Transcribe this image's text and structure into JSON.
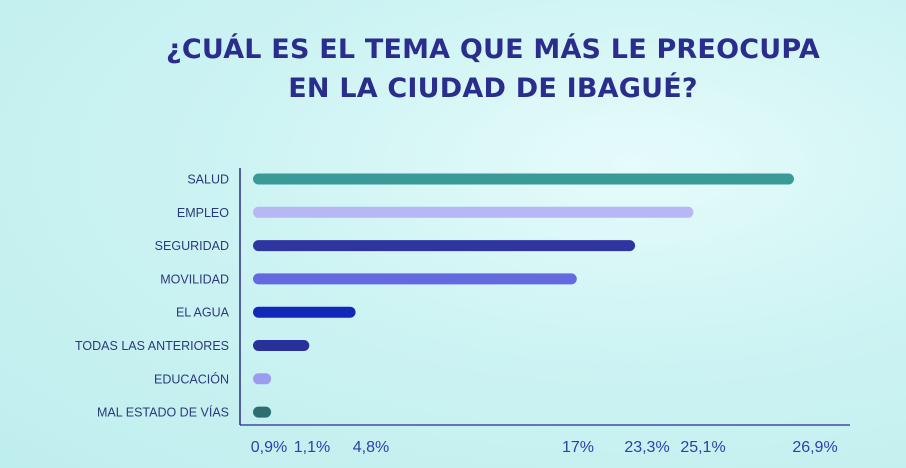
{
  "title": {
    "line1": "¿CUÁL ES EL TEMA QUE MÁS LE PREOCUPA",
    "line2": "EN LA CIUDAD DE IBAGUÉ?"
  },
  "chart_data": {
    "type": "bar",
    "orientation": "horizontal",
    "categories": [
      "SALUD",
      "EMPLEO",
      "SEGURIDAD",
      "MOVILIDAD",
      "EL AGUA",
      "TODAS LAS ANTERIORES",
      "EDUCACIÓN",
      "MAL ESTADO DE VÍAS"
    ],
    "values": [
      26.9,
      21.9,
      19.0,
      16.1,
      5.1,
      2.8,
      0.9,
      0.9
    ],
    "colors": [
      "#3a9a98",
      "#b7b7f5",
      "#2e35a0",
      "#6469e0",
      "#1428b8",
      "#28309a",
      "#9b9bf0",
      "#2e6e70"
    ],
    "tick_labels": [
      "0,9%",
      "1,1%",
      "4,8%",
      "17%",
      "23,3%",
      "25,1%",
      "26,9%"
    ],
    "tick_values": [
      0.9,
      1.1,
      4.8,
      17,
      23.3,
      25.1,
      26.9
    ],
    "xlim": [
      0,
      27.2
    ],
    "grid": false
  }
}
